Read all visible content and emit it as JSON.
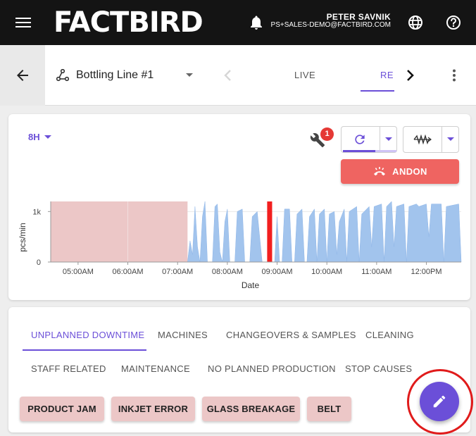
{
  "app": {
    "logo": "FACTBIRD",
    "user_name": "PETER SAVNIK",
    "user_email": "PS+SALES-DEMO@FACTBIRD.COM",
    "icons": [
      "menu-icon",
      "bell-icon",
      "globe-icon",
      "help-icon"
    ]
  },
  "subheader": {
    "line_name": "Bottling Line #1",
    "tab_live": "LIVE",
    "tab_active_partial": "RE",
    "icons": [
      "back-arrow-icon",
      "hierarchy-icon",
      "chevron-left-icon",
      "chevron-right-icon",
      "more-vert-icon"
    ]
  },
  "controls": {
    "range": "8H",
    "maintenance_badge": "1",
    "andon_label": "ANDON",
    "refresh_progress": 0.6,
    "colors": {
      "accent": "#6b4fd8",
      "andon": "#ef6461",
      "badge": "#e53935"
    }
  },
  "chart_data": {
    "type": "area",
    "xlabel": "Date",
    "ylabel": "pcs/min",
    "ytick_labels": [
      "0",
      "1k"
    ],
    "xtick_labels": [
      "05:00AM",
      "06:00AM",
      "07:00AM",
      "08:00AM",
      "09:00AM",
      "10:00AM",
      "11:00AM",
      "12:00PM"
    ],
    "x_start_hour": 4.45,
    "x_end_hour": 12.7,
    "y_max": 1200,
    "downtime_bands": [
      {
        "from_hour": 4.45,
        "to_hour": 7.2,
        "color": "#ecc7c7"
      },
      {
        "from_hour": 8.8,
        "to_hour": 8.9,
        "color": "#f21f1f"
      }
    ],
    "series": [
      {
        "color": "#a2c4ed",
        "points": [
          [
            7.2,
            0
          ],
          [
            7.25,
            420
          ],
          [
            7.3,
            150
          ],
          [
            7.35,
            1100
          ],
          [
            7.4,
            300
          ],
          [
            7.45,
            0
          ],
          [
            7.5,
            900
          ],
          [
            7.55,
            1200
          ],
          [
            7.6,
            0
          ],
          [
            7.7,
            0
          ],
          [
            7.75,
            1100
          ],
          [
            7.8,
            1150
          ],
          [
            7.85,
            200
          ],
          [
            7.9,
            0
          ],
          [
            7.95,
            800
          ],
          [
            8.0,
            1050
          ],
          [
            8.05,
            0
          ],
          [
            8.15,
            0
          ],
          [
            8.2,
            1000
          ],
          [
            8.3,
            1050
          ],
          [
            8.35,
            0
          ],
          [
            8.45,
            0
          ],
          [
            8.5,
            900
          ],
          [
            8.6,
            1000
          ],
          [
            8.7,
            0
          ],
          [
            8.95,
            0
          ],
          [
            9.0,
            900
          ],
          [
            9.05,
            0
          ],
          [
            9.1,
            0
          ],
          [
            9.15,
            1050
          ],
          [
            9.25,
            1050
          ],
          [
            9.3,
            0
          ],
          [
            9.35,
            0
          ],
          [
            9.4,
            950
          ],
          [
            9.5,
            1050
          ],
          [
            9.55,
            0
          ],
          [
            9.6,
            0
          ],
          [
            9.65,
            900
          ],
          [
            9.75,
            1050
          ],
          [
            9.8,
            0
          ],
          [
            9.85,
            950
          ],
          [
            9.95,
            1050
          ],
          [
            10.0,
            0
          ],
          [
            10.05,
            950
          ],
          [
            10.15,
            1000
          ],
          [
            10.2,
            150
          ],
          [
            10.25,
            800
          ],
          [
            10.35,
            1050
          ],
          [
            10.4,
            0
          ],
          [
            10.45,
            1000
          ],
          [
            10.6,
            1100
          ],
          [
            10.65,
            0
          ],
          [
            10.7,
            950
          ],
          [
            10.85,
            1100
          ],
          [
            10.9,
            300
          ],
          [
            10.95,
            1100
          ],
          [
            11.1,
            1150
          ],
          [
            11.15,
            0
          ],
          [
            11.2,
            1100
          ],
          [
            11.3,
            1200
          ],
          [
            11.35,
            300
          ],
          [
            11.4,
            1100
          ],
          [
            11.55,
            1150
          ],
          [
            11.6,
            0
          ],
          [
            11.65,
            1100
          ],
          [
            11.8,
            1150
          ],
          [
            11.85,
            1100
          ],
          [
            12.0,
            1150
          ],
          [
            12.05,
            500
          ],
          [
            12.1,
            1150
          ],
          [
            12.3,
            1150
          ],
          [
            12.35,
            0
          ],
          [
            12.4,
            1100
          ],
          [
            12.65,
            1150
          ],
          [
            12.7,
            0
          ]
        ]
      }
    ]
  },
  "downtime": {
    "tabs": [
      "UNPLANNED DOWNTIME",
      "MACHINES",
      "CHANGEOVERS & SAMPLES",
      "CLEANING",
      "STAFF RELATED",
      "MAINTENANCE",
      "NO PLANNED PRODUCTION",
      "STOP CAUSES"
    ],
    "active_tab": "UNPLANNED DOWNTIME",
    "chips": [
      "PRODUCT JAM",
      "INKJET ERROR",
      "GLASS BREAKAGE",
      "BELT"
    ],
    "fab_icon": "pencil-icon"
  }
}
